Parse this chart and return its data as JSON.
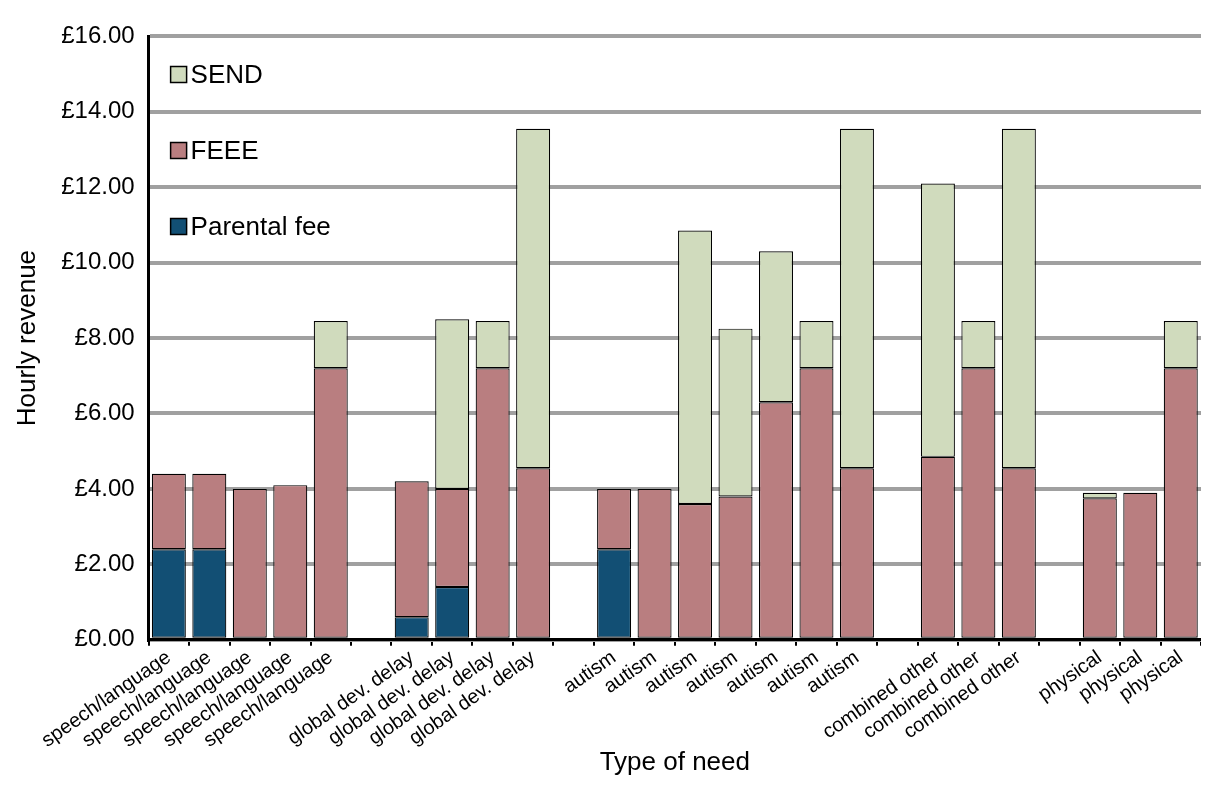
{
  "chart_data": {
    "type": "bar",
    "stacked": true,
    "xlabel": "Type of need",
    "ylabel": "Hourly revenue",
    "categories": [
      "speech/language",
      "speech/language",
      "speech/language",
      "speech/language",
      "speech/language",
      null,
      "global dev. delay",
      "global dev. delay",
      "global dev. delay",
      "global dev. delay",
      null,
      "autism",
      "autism",
      "autism",
      "autism",
      "autism",
      "autism",
      "autism",
      null,
      "combined other",
      "combined other",
      "combined other",
      null,
      "physical",
      "physical",
      "physical"
    ],
    "series": [
      {
        "name": "Parental fee",
        "color": "#124f74",
        "values": [
          2.4,
          2.4,
          null,
          null,
          null,
          null,
          0.6,
          1.4,
          null,
          null,
          null,
          2.4,
          null,
          null,
          null,
          null,
          null,
          null,
          null,
          null,
          null,
          null,
          null,
          null,
          null,
          null
        ]
      },
      {
        "name": "FEEE",
        "color": "#b97e80",
        "values": [
          2.0,
          2.0,
          4.0,
          4.1,
          7.2,
          null,
          3.6,
          2.6,
          7.2,
          4.55,
          null,
          1.6,
          4.0,
          3.6,
          3.8,
          6.3,
          7.2,
          4.55,
          null,
          4.85,
          7.2,
          4.55,
          null,
          3.75,
          3.9,
          7.2
        ]
      },
      {
        "name": "SEND",
        "color": "#d0dbbd",
        "values": [
          null,
          null,
          null,
          null,
          1.25,
          null,
          null,
          4.5,
          1.25,
          9.0,
          null,
          null,
          null,
          7.25,
          4.45,
          4.0,
          1.25,
          9.0,
          null,
          7.25,
          1.25,
          9.0,
          null,
          0.15,
          null,
          1.25
        ]
      }
    ],
    "ylim": [
      0,
      16
    ],
    "yticks": [
      {
        "value": 0,
        "label": "£0.00"
      },
      {
        "value": 2,
        "label": "£2.00"
      },
      {
        "value": 4,
        "label": "£4.00"
      },
      {
        "value": 6,
        "label": "£6.00"
      },
      {
        "value": 8,
        "label": "£8.00"
      },
      {
        "value": 10,
        "label": "£10.00"
      },
      {
        "value": 12,
        "label": "£12.00"
      },
      {
        "value": 14,
        "label": "£14.00"
      },
      {
        "value": 16,
        "label": "£16.00"
      }
    ],
    "grid": "y",
    "legend": "top left"
  }
}
